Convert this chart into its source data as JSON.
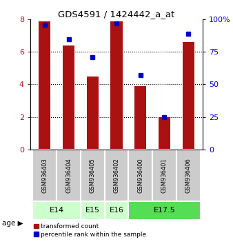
{
  "title": "GDS4591 / 1424442_a_at",
  "samples": [
    "GSM936403",
    "GSM936404",
    "GSM936405",
    "GSM936402",
    "GSM936400",
    "GSM936401",
    "GSM936406"
  ],
  "bar_values": [
    7.9,
    6.4,
    4.5,
    7.9,
    3.9,
    2.0,
    6.6
  ],
  "dot_values": [
    96,
    85,
    71,
    97,
    57,
    25,
    89
  ],
  "bar_color": "#AA1111",
  "dot_color": "#0000CC",
  "ylim_left": [
    0,
    8
  ],
  "ylim_right": [
    0,
    100
  ],
  "yticks_left": [
    0,
    2,
    4,
    6,
    8
  ],
  "yticks_right": [
    0,
    25,
    50,
    75,
    100
  ],
  "age_group_defs": [
    {
      "label": "E14",
      "indices": [
        0,
        1
      ],
      "color": "#CCFFCC"
    },
    {
      "label": "E15",
      "indices": [
        2
      ],
      "color": "#CCFFCC"
    },
    {
      "label": "E16",
      "indices": [
        3
      ],
      "color": "#CCFFCC"
    },
    {
      "label": "E17.5",
      "indices": [
        4,
        5,
        6
      ],
      "color": "#55DD55"
    }
  ],
  "bar_width": 0.5,
  "background_color": "#FFFFFF",
  "tick_gray_bg": "#CCCCCC",
  "legend_items": [
    {
      "color": "#AA1111",
      "label": "transformed count"
    },
    {
      "color": "#0000CC",
      "label": "percentile rank within the sample"
    }
  ]
}
